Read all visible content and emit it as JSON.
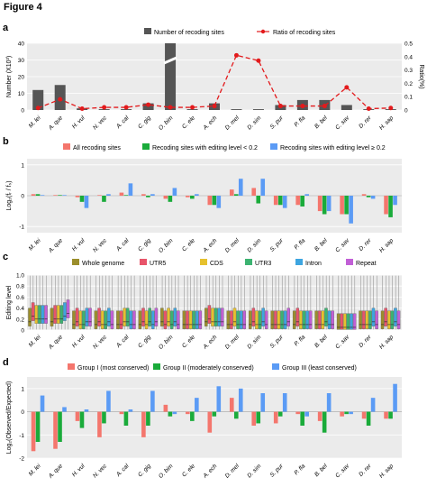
{
  "figure_title": "Figure 4",
  "species": [
    "M. lei",
    "A. que",
    "H. vul",
    "N. vec",
    "A. cal",
    "C. gig",
    "O. bim",
    "C. ele",
    "A. ech",
    "D. mel",
    "D. sim",
    "S. pur",
    "P. fla",
    "B. bel",
    "C. sav",
    "D. rer",
    "H. sap"
  ],
  "colors": {
    "bars_a": "#555555",
    "ratio": "#e31a1c",
    "all_sites": "#f4766d",
    "low_level": "#1aab3a",
    "high_level": "#5b9bf5",
    "whole_genome": "#9b8e2c",
    "utr5": "#e8546a",
    "cds": "#e6c12e",
    "utr3": "#3cb371",
    "intron": "#3da5e0",
    "repeat": "#c15fd6",
    "group1": "#f4766d",
    "group2": "#1aab3a",
    "group3": "#5b9bf5"
  },
  "chart_data": [
    {
      "panel": "a",
      "type": "bar+line",
      "legend": [
        "Number of recoding sites",
        "Ratio of recoding sites"
      ],
      "ylabel_left": "Number (X10³)",
      "ylabel_right": "Ratio(%)",
      "ylim_left": [
        0,
        40
      ],
      "yticks_left": [
        "0",
        "10",
        "20",
        "30",
        "40"
      ],
      "ylim_right": [
        0,
        0.5
      ],
      "yticks_right": [
        "0",
        "0.1",
        "0.2",
        "0.3",
        "0.4",
        "0.5"
      ],
      "bar_values": [
        12,
        15,
        1,
        0.5,
        0.5,
        4,
        40,
        0.5,
        4,
        0.5,
        0.5,
        3,
        6,
        6,
        3,
        0.5,
        0.5
      ],
      "ratio_values": [
        0.015,
        0.08,
        0.01,
        0.02,
        0.02,
        0.04,
        0.02,
        0.02,
        0.03,
        0.41,
        0.37,
        0.03,
        0.03,
        0.03,
        0.17,
        0.01,
        0.015
      ]
    },
    {
      "panel": "b",
      "type": "grouped-bar",
      "legend": [
        "All recoding sites",
        "Recoding sites with editing level < 0.2",
        "Recoding sites with editing level ≥ 0.2"
      ],
      "ylabel": "Log₂(fᵣ / fₛ)",
      "ylim": [
        -1.2,
        1.2
      ],
      "yticks": [
        "1",
        "0",
        "-1"
      ],
      "series": [
        {
          "name": "All recoding sites",
          "values": [
            0.05,
            0.02,
            -0.05,
            0.02,
            0.1,
            0.05,
            -0.1,
            -0.05,
            -0.3,
            0.2,
            0.25,
            -0.3,
            -0.3,
            -0.5,
            -0.6,
            0.05,
            -0.6
          ]
        },
        {
          "name": "Recoding sites with editing level < 0.2",
          "values": [
            0.05,
            0.02,
            -0.2,
            -0.2,
            0.02,
            -0.05,
            -0.2,
            -0.1,
            -0.3,
            0.05,
            -0.25,
            -0.3,
            -0.35,
            -0.6,
            -0.6,
            -0.05,
            -0.7
          ]
        },
        {
          "name": "Recoding sites with editing level ≥ 0.2",
          "values": [
            0.02,
            0.02,
            -0.4,
            0.05,
            0.4,
            0.05,
            0.25,
            0.05,
            -0.4,
            0.55,
            0.55,
            -0.4,
            0.05,
            -0.5,
            -0.9,
            -0.1,
            -0.3
          ]
        }
      ]
    },
    {
      "panel": "c",
      "type": "box",
      "legend": [
        "Whole genome",
        "UTR5",
        "CDS",
        "UTR3",
        "Intron",
        "Repeat"
      ],
      "ylabel": "Editing level",
      "ylim": [
        0,
        1
      ],
      "yticks": [
        "0",
        "0.2",
        "0.4",
        "0.6",
        "0.8",
        "1.0"
      ],
      "medians": [
        [
          0.15,
          0.25,
          0.2,
          0.2,
          0.2,
          0.2
        ],
        [
          0.15,
          0.2,
          0.2,
          0.2,
          0.25,
          0.3
        ],
        [
          0.1,
          0.15,
          0.1,
          0.1,
          0.15,
          0.15
        ],
        [
          0.1,
          0.15,
          0.1,
          0.1,
          0.15,
          0.1
        ],
        [
          0.1,
          0.1,
          0.15,
          0.15,
          0.1,
          0.1
        ],
        [
          0.1,
          0.15,
          0.1,
          0.15,
          0.1,
          0.15
        ],
        [
          0.15,
          0.1,
          0.15,
          0.1,
          0.15,
          0.1
        ],
        [
          0.1,
          0.1,
          0.1,
          0.1,
          0.1,
          0.1
        ],
        [
          0.15,
          0.2,
          0.15,
          0.15,
          0.15,
          0.15
        ],
        [
          0.1,
          0.1,
          0.15,
          0.1,
          0.1,
          0.1
        ],
        [
          0.1,
          0.15,
          0.1,
          0.1,
          0.15,
          0.1
        ],
        [
          0.1,
          0.1,
          0.1,
          0.1,
          0.1,
          0.15
        ],
        [
          0.1,
          0.15,
          0.1,
          0.1,
          0.1,
          0.1
        ],
        [
          0.1,
          0.1,
          0.1,
          0.15,
          0.1,
          0.1
        ],
        [
          0.05,
          0.05,
          0.05,
          0.05,
          0.05,
          0.05
        ],
        [
          0.1,
          0.1,
          0.1,
          0.1,
          0.15,
          0.1
        ],
        [
          0.1,
          0.15,
          0.1,
          0.1,
          0.15,
          0.1
        ]
      ]
    },
    {
      "panel": "d",
      "type": "grouped-bar",
      "legend": [
        "Group I (most conserved)",
        "Group II (moderately conserved)",
        "Group III (least conserved)"
      ],
      "ylabel": "Log₂(Observed/Expected)",
      "ylim": [
        -2,
        1.5
      ],
      "yticks": [
        "1",
        "0",
        "-1",
        "-2"
      ],
      "series": [
        {
          "name": "Group I (most conserved)",
          "values": [
            -1.7,
            -1.6,
            -0.4,
            -1.1,
            -0.1,
            -1.1,
            0.3,
            -0.1,
            -0.9,
            0.6,
            -0.6,
            -0.5,
            -0.1,
            -0.4,
            -0.2,
            -0.3,
            -0.3
          ]
        },
        {
          "name": "Group II (moderately conserved)",
          "values": [
            -1.3,
            -1.3,
            -0.7,
            -0.5,
            -0.6,
            -0.6,
            -0.2,
            -0.4,
            -0.2,
            -0.3,
            -0.5,
            -0.2,
            -0.6,
            -0.9,
            -0.1,
            -0.6,
            -0.3
          ]
        },
        {
          "name": "Group III (least conserved)",
          "values": [
            0.7,
            0.2,
            0.1,
            0.9,
            0.1,
            0.9,
            -0.1,
            0.6,
            1.1,
            1.0,
            0.8,
            0.8,
            -0.2,
            0.8,
            -0.1,
            0.6,
            1.2
          ]
        }
      ]
    }
  ]
}
